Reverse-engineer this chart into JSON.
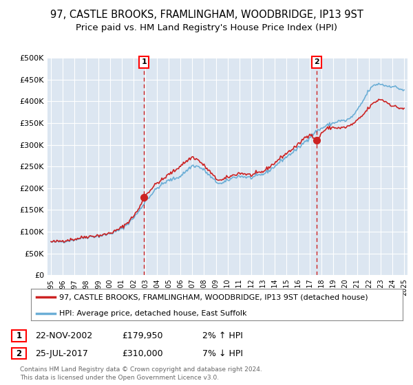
{
  "title": "97, CASTLE BROOKS, FRAMLINGHAM, WOODBRIDGE, IP13 9ST",
  "subtitle": "Price paid vs. HM Land Registry's House Price Index (HPI)",
  "title_fontsize": 10.5,
  "subtitle_fontsize": 9.5,
  "background_color": "#ffffff",
  "plot_bg_color": "#dce6f1",
  "grid_color": "#ffffff",
  "ylim": [
    0,
    500000
  ],
  "yticks": [
    0,
    50000,
    100000,
    150000,
    200000,
    250000,
    300000,
    350000,
    400000,
    450000,
    500000
  ],
  "ytick_labels": [
    "£0",
    "£50K",
    "£100K",
    "£150K",
    "£200K",
    "£250K",
    "£300K",
    "£350K",
    "£400K",
    "£450K",
    "£500K"
  ],
  "xlim_start": 1994.7,
  "xlim_end": 2025.3,
  "xtick_years": [
    1995,
    1996,
    1997,
    1998,
    1999,
    2000,
    2001,
    2002,
    2003,
    2004,
    2005,
    2006,
    2007,
    2008,
    2009,
    2010,
    2011,
    2012,
    2013,
    2014,
    2015,
    2016,
    2017,
    2018,
    2019,
    2020,
    2021,
    2022,
    2023,
    2024,
    2025
  ],
  "hpi_color": "#6baed6",
  "price_color": "#cc2222",
  "sale1_x": 2002.9,
  "sale1_y": 179950,
  "sale1_label": "1",
  "sale2_x": 2017.56,
  "sale2_y": 310000,
  "sale2_label": "2",
  "legend_entries": [
    "97, CASTLE BROOKS, FRAMLINGHAM, WOODBRIDGE, IP13 9ST (detached house)",
    "HPI: Average price, detached house, East Suffolk"
  ],
  "legend_colors": [
    "#cc2222",
    "#6baed6"
  ],
  "footer_lines": [
    "Contains HM Land Registry data © Crown copyright and database right 2024.",
    "This data is licensed under the Open Government Licence v3.0."
  ],
  "annotation1": [
    "1",
    "22-NOV-2002",
    "£179,950",
    "2% ↑ HPI"
  ],
  "annotation2": [
    "2",
    "25-JUL-2017",
    "£310,000",
    "7% ↓ HPI"
  ]
}
